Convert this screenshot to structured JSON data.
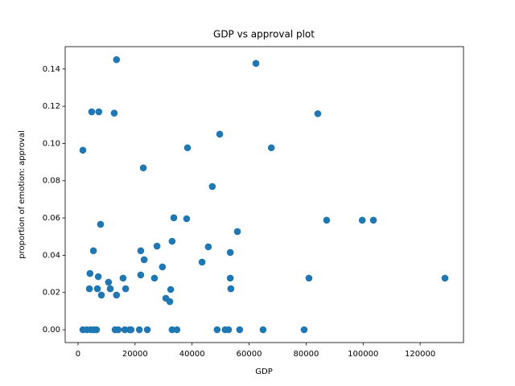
{
  "chart_data": {
    "type": "scatter",
    "title": "GDP vs approval plot",
    "xlabel": "GDP",
    "ylabel": "proportion of emotion: approval",
    "color": "#1f77b4",
    "x": [
      1700,
      4800,
      7300,
      12700,
      13500,
      62400,
      84100,
      49700,
      38400,
      67800,
      22900,
      47100,
      7900,
      33600,
      38100,
      87200,
      99700,
      103600,
      55900,
      27700,
      45700,
      5400,
      22000,
      33000,
      53400,
      23200,
      43500,
      29600,
      4200,
      22000,
      7100,
      15800,
      26800,
      53400,
      81000,
      128700,
      10700,
      11300,
      4000,
      6800,
      16700,
      32500,
      53600,
      8200,
      13500,
      30800,
      32200,
      1700,
      3100,
      4500,
      5600,
      6500,
      13000,
      14100,
      16400,
      18100,
      18600,
      21500,
      24300,
      33000,
      34700,
      48800,
      51600,
      52800,
      56700,
      64900,
      79300
    ],
    "values": [
      0.0964,
      0.117,
      0.117,
      0.1163,
      0.145,
      0.143,
      0.116,
      0.105,
      0.0977,
      0.0977,
      0.0869,
      0.0769,
      0.0566,
      0.0601,
      0.0596,
      0.0588,
      0.0588,
      0.0588,
      0.0527,
      0.0449,
      0.0445,
      0.0424,
      0.0424,
      0.0475,
      0.0415,
      0.0376,
      0.0363,
      0.0337,
      0.0302,
      0.0294,
      0.0285,
      0.0277,
      0.0277,
      0.0277,
      0.0277,
      0.0277,
      0.0255,
      0.022,
      0.022,
      0.022,
      0.022,
      0.0216,
      0.022,
      0.0186,
      0.0186,
      0.0169,
      0.0151,
      0,
      0,
      0,
      0,
      0,
      0,
      0,
      0,
      0,
      0,
      0,
      0,
      0,
      0,
      0,
      0,
      0,
      0,
      0,
      0
    ],
    "xlim": [
      -4500,
      135200
    ],
    "ylim": [
      -0.0069,
      0.152
    ],
    "xticks": [
      0,
      20000,
      40000,
      60000,
      80000,
      100000,
      120000
    ],
    "yticks": [
      {
        "value": 0,
        "label": "0.00"
      },
      {
        "value": 0.02,
        "label": "0.02"
      },
      {
        "value": 0.04,
        "label": "0.04"
      },
      {
        "value": 0.06,
        "label": "0.06"
      },
      {
        "value": 0.08,
        "label": "0.08"
      },
      {
        "value": 0.1,
        "label": "0.10"
      },
      {
        "value": 0.12,
        "label": "0.12"
      },
      {
        "value": 0.14,
        "label": "0.14"
      }
    ]
  }
}
